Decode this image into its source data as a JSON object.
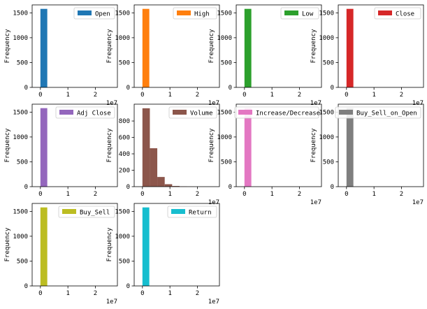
{
  "chart_data": [
    {
      "type": "bar",
      "series": [
        {
          "name": "Open",
          "color": "#1f77b4",
          "values": [
            1580,
            0,
            0,
            0,
            0,
            0,
            0,
            0,
            0,
            0
          ]
        }
      ],
      "ylabel": "Frequency",
      "xticks": [
        "0",
        "1",
        "2"
      ],
      "yticks": [
        "0",
        "500",
        "1000",
        "1500"
      ],
      "offset": "1e7",
      "xlim": [
        -0.3,
        2.8
      ],
      "ylim": [
        0,
        1660
      ],
      "bin_edges": [
        0,
        0.25
      ]
    },
    {
      "type": "bar",
      "series": [
        {
          "name": "High",
          "color": "#ff7f0e",
          "values": [
            1580,
            0,
            0,
            0,
            0,
            0,
            0,
            0,
            0,
            0
          ]
        }
      ],
      "ylabel": "Frequency",
      "xticks": [
        "0",
        "1",
        "2"
      ],
      "yticks": [
        "0",
        "500",
        "1000",
        "1500"
      ],
      "offset": "1e7",
      "xlim": [
        -0.3,
        2.8
      ],
      "ylim": [
        0,
        1660
      ],
      "bin_edges": [
        0,
        0.25
      ]
    },
    {
      "type": "bar",
      "series": [
        {
          "name": "Low",
          "color": "#2ca02c",
          "values": [
            1580,
            0,
            0,
            0,
            0,
            0,
            0,
            0,
            0,
            0
          ]
        }
      ],
      "ylabel": "Frequency",
      "xticks": [
        "0",
        "1",
        "2"
      ],
      "yticks": [
        "0",
        "500",
        "1000",
        "1500"
      ],
      "offset": "1e7",
      "xlim": [
        -0.3,
        2.8
      ],
      "ylim": [
        0,
        1660
      ],
      "bin_edges": [
        0,
        0.25
      ]
    },
    {
      "type": "bar",
      "series": [
        {
          "name": "Close",
          "color": "#d62728",
          "values": [
            1580,
            0,
            0,
            0,
            0,
            0,
            0,
            0,
            0,
            0
          ]
        }
      ],
      "ylabel": "Frequency",
      "xticks": [
        "0",
        "1",
        "2"
      ],
      "yticks": [
        "0",
        "500",
        "1000",
        "1500"
      ],
      "offset": "1e7",
      "xlim": [
        -0.3,
        2.8
      ],
      "ylim": [
        0,
        1660
      ],
      "bin_edges": [
        0,
        0.25
      ]
    },
    {
      "type": "bar",
      "series": [
        {
          "name": "Adj Close",
          "color": "#9467bd",
          "values": [
            1580,
            0,
            0,
            0,
            0,
            0,
            0,
            0,
            0,
            0
          ]
        }
      ],
      "ylabel": "Frequency",
      "xticks": [
        "0",
        "1",
        "2"
      ],
      "yticks": [
        "0",
        "500",
        "1000",
        "1500"
      ],
      "offset": "",
      "xlim": [
        -0.3,
        2.8
      ],
      "ylim": [
        0,
        1660
      ],
      "bin_edges": [
        0,
        0.25
      ]
    },
    {
      "type": "bar",
      "series": [
        {
          "name": "Volume",
          "color": "#8c564b",
          "values": [
            955,
            468,
            118,
            30,
            8,
            3,
            1,
            0,
            0,
            0
          ]
        }
      ],
      "ylabel": "Frequency",
      "xticks": [
        "0",
        "1",
        "2"
      ],
      "yticks": [
        "0",
        "200",
        "400",
        "600",
        "800"
      ],
      "offset": "1e7",
      "xlim": [
        -0.3,
        2.8
      ],
      "ylim": [
        0,
        1005
      ],
      "bin_edges": [
        0,
        0.27
      ]
    },
    {
      "type": "bar",
      "series": [
        {
          "name": "Increase/Decrease",
          "color": "#e377c2",
          "values": [
            1580,
            0,
            0,
            0,
            0,
            0,
            0,
            0,
            0,
            0
          ]
        }
      ],
      "ylabel": "Frequency",
      "xticks": [
        "0",
        "1",
        "2"
      ],
      "yticks": [
        "0",
        "500",
        "1000",
        "1500"
      ],
      "offset": "1e7",
      "xlim": [
        -0.3,
        2.8
      ],
      "ylim": [
        0,
        1660
      ],
      "bin_edges": [
        0,
        0.25
      ]
    },
    {
      "type": "bar",
      "series": [
        {
          "name": "Buy_Sell_on_Open",
          "color": "#7f7f7f",
          "values": [
            1580,
            0,
            0,
            0,
            0,
            0,
            0,
            0,
            0,
            0
          ]
        }
      ],
      "ylabel": "Frequency",
      "xticks": [
        "0",
        "1",
        "2"
      ],
      "yticks": [
        "0",
        "500",
        "1000",
        "1500"
      ],
      "offset": "1e7",
      "xlim": [
        -0.3,
        2.8
      ],
      "ylim": [
        0,
        1660
      ],
      "bin_edges": [
        0,
        0.25
      ]
    },
    {
      "type": "bar",
      "series": [
        {
          "name": "Buy_Sell",
          "color": "#bcbd22",
          "values": [
            1580,
            0,
            0,
            0,
            0,
            0,
            0,
            0,
            0,
            0
          ]
        }
      ],
      "ylabel": "Frequency",
      "xticks": [
        "0",
        "1",
        "2"
      ],
      "yticks": [
        "0",
        "500",
        "1000",
        "1500"
      ],
      "offset": "1e7",
      "xlim": [
        -0.3,
        2.8
      ],
      "ylim": [
        0,
        1660
      ],
      "bin_edges": [
        0,
        0.25
      ]
    },
    {
      "type": "bar",
      "series": [
        {
          "name": "Return",
          "color": "#17becf",
          "values": [
            1580,
            0,
            0,
            0,
            0,
            0,
            0,
            0,
            0,
            0
          ]
        }
      ],
      "ylabel": "Frequency",
      "xticks": [
        "0",
        "1",
        "2"
      ],
      "yticks": [
        "0",
        "500",
        "1000",
        "1500"
      ],
      "offset": "1e7",
      "xlim": [
        -0.3,
        2.8
      ],
      "ylim": [
        0,
        1660
      ],
      "bin_edges": [
        0,
        0.25
      ]
    }
  ]
}
